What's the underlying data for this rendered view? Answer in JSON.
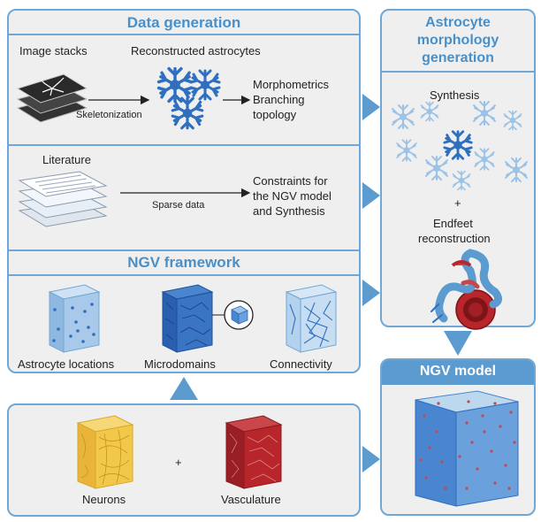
{
  "data_generation": {
    "title": "Data generation",
    "image_stacks": "Image stacks",
    "reconstructed": "Reconstructed astrocytes",
    "skeletonization": "Skeletonization",
    "morphometrics_1": "Morphometrics",
    "morphometrics_2": "Branching",
    "morphometrics_3": "topology",
    "literature": "Literature",
    "sparse_data": "Sparse data",
    "constraints_1": "Constraints for",
    "constraints_2": "the NGV model",
    "constraints_3": "and Synthesis"
  },
  "ngv_framework": {
    "title": "NGV framework",
    "astrocyte_locations": "Astrocyte locations",
    "microdomains": "Microdomains",
    "connectivity": "Connectivity"
  },
  "inputs": {
    "neurons": "Neurons",
    "plus": "+",
    "vasculature": "Vasculature"
  },
  "morphology": {
    "title_1": "Astrocyte",
    "title_2": "morphology",
    "title_3": "generation",
    "synthesis": "Synthesis",
    "plus": "+",
    "endfeet_1": "Endfeet",
    "endfeet_2": "reconstruction"
  },
  "ngv_model": {
    "title": "NGV model"
  },
  "colors": {
    "accent": "#4a90c8",
    "border": "#6fa8d6",
    "panel": "#efefef",
    "astro_blue": "#2f6fc0",
    "neuron_yellow": "#f2c84b",
    "vessel_red": "#b8262b"
  }
}
